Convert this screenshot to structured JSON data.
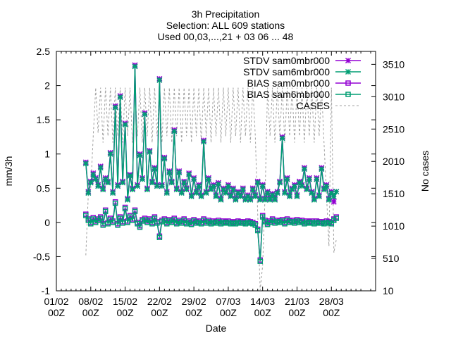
{
  "chart_data": {
    "type": "line",
    "title_lines": [
      "3h Precipitation",
      "Selection: ALL    609 stations",
      "Used 00,03,...,21 + 03 06 ... 48"
    ],
    "xlabel": "Date",
    "ylabel": "mm/3h",
    "y2label": "No cases",
    "xlim": [
      0,
      65
    ],
    "ylim": [
      -1,
      2.5
    ],
    "y2lim": [
      10,
      3710
    ],
    "xticks": [
      {
        "v": 0,
        "l1": "01/02",
        "l2": "00Z"
      },
      {
        "v": 7,
        "l1": "08/02",
        "l2": "00Z"
      },
      {
        "v": 14,
        "l1": "15/02",
        "l2": "00Z"
      },
      {
        "v": 21,
        "l1": "22/02",
        "l2": "00Z"
      },
      {
        "v": 28,
        "l1": "29/02",
        "l2": "00Z"
      },
      {
        "v": 35,
        "l1": "07/03",
        "l2": "00Z"
      },
      {
        "v": 42,
        "l1": "14/03",
        "l2": "00Z"
      },
      {
        "v": 49,
        "l1": "21/03",
        "l2": "00Z"
      },
      {
        "v": 56,
        "l1": "28/03",
        "l2": "00Z"
      }
    ],
    "yticks": [
      -1,
      -0.5,
      0,
      0.5,
      1,
      1.5,
      2,
      2.5
    ],
    "ytick_labels": [
      "-1",
      "-0.5",
      "0",
      "0.5",
      "1",
      "1.5",
      "2",
      "2.5"
    ],
    "y2ticks": [
      10,
      510,
      1010,
      1510,
      2010,
      2510,
      3010,
      3510
    ],
    "y2tick_labels": [
      "10",
      "510",
      "1010",
      "1510",
      "2010",
      "2510",
      "3010",
      "3510"
    ],
    "legend": [
      {
        "label": "STDV sam0mbr000",
        "color": "#9400d3",
        "marker": "star"
      },
      {
        "label": "STDV sam6mbr000",
        "color": "#009e73",
        "marker": "star"
      },
      {
        "label": "BIAS sam0mbr000",
        "color": "#9400d3",
        "marker": "square"
      },
      {
        "label": "BIAS sam6mbr000",
        "color": "#009e73",
        "marker": "square"
      },
      {
        "label": "CASES",
        "color": "#a0a0a0",
        "marker": "dash"
      }
    ],
    "series": [
      {
        "name": "STDV sam0mbr000",
        "color": "#9400d3",
        "x": [
          6,
          6.5,
          7,
          7.5,
          8,
          8.5,
          9,
          9.5,
          10,
          10.5,
          11,
          11.5,
          12,
          12.5,
          13,
          13.5,
          14,
          14.5,
          15,
          15.5,
          16,
          16.5,
          17,
          17.5,
          18,
          18.5,
          19,
          19.5,
          20,
          20.5,
          21,
          21.5,
          22,
          22.5,
          23,
          23.5,
          24,
          24.5,
          25,
          25.5,
          26,
          26.5,
          27,
          27.5,
          28,
          28.5,
          29,
          29.5,
          30,
          30.5,
          31,
          31.5,
          32,
          32.5,
          33,
          33.5,
          34,
          34.5,
          35,
          35.5,
          36,
          36.5,
          37,
          37.5,
          38,
          38.5,
          39,
          39.5,
          40,
          40.5,
          41,
          41.5,
          42,
          42.5,
          43,
          43.5,
          44,
          44.5,
          45,
          45.5,
          46,
          46.5,
          47,
          47.5,
          48,
          48.5,
          49,
          49.5,
          50,
          50.5,
          51,
          51.5,
          52,
          52.5,
          53,
          53.5,
          54,
          54.5,
          55,
          55.5,
          56,
          56.5,
          57
        ],
        "y": [
          0.88,
          0.45,
          0.6,
          0.72,
          0.65,
          0.55,
          0.82,
          0.5,
          0.65,
          0.6,
          1.02,
          0.45,
          1.7,
          0.55,
          1.85,
          0.6,
          1.45,
          0.35,
          0.7,
          0.5,
          2.3,
          0.55,
          1.0,
          0.65,
          1.6,
          0.5,
          1.05,
          0.6,
          0.8,
          0.55,
          2.1,
          0.55,
          0.95,
          0.45,
          0.75,
          0.6,
          1.35,
          0.5,
          0.75,
          0.45,
          0.6,
          0.5,
          0.72,
          0.4,
          0.65,
          0.45,
          0.55,
          0.4,
          1.2,
          0.45,
          0.65,
          0.5,
          0.55,
          0.4,
          0.58,
          0.35,
          0.5,
          0.45,
          0.55,
          0.4,
          0.5,
          0.35,
          0.45,
          0.4,
          0.5,
          0.35,
          0.4,
          0.35,
          0.5,
          0.4,
          0.6,
          0.35,
          0.55,
          0.35,
          0.45,
          0.35,
          0.42,
          0.35,
          0.45,
          0.6,
          1.25,
          0.45,
          0.65,
          0.4,
          0.5,
          0.55,
          0.4,
          0.6,
          0.55,
          0.8,
          0.5,
          0.65,
          0.45,
          0.35,
          0.65,
          0.4,
          0.8,
          0.5,
          0.55,
          0.35,
          0.45,
          0.3,
          0.45
        ]
      },
      {
        "name": "STDV sam6mbr000",
        "color": "#009e73",
        "x": [
          6,
          6.5,
          7,
          7.5,
          8,
          8.5,
          9,
          9.5,
          10,
          10.5,
          11,
          11.5,
          12,
          12.5,
          13,
          13.5,
          14,
          14.5,
          15,
          15.5,
          16,
          16.5,
          17,
          17.5,
          18,
          18.5,
          19,
          19.5,
          20,
          20.5,
          21,
          21.5,
          22,
          22.5,
          23,
          23.5,
          24,
          24.5,
          25,
          25.5,
          26,
          26.5,
          27,
          27.5,
          28,
          28.5,
          29,
          29.5,
          30,
          30.5,
          31,
          31.5,
          32,
          32.5,
          33,
          33.5,
          34,
          34.5,
          35,
          35.5,
          36,
          36.5,
          37,
          37.5,
          38,
          38.5,
          39,
          39.5,
          40,
          40.5,
          41,
          41.5,
          42,
          42.5,
          43,
          43.5,
          44,
          44.5,
          45,
          45.5,
          46,
          46.5,
          47,
          47.5,
          48,
          48.5,
          49,
          49.5,
          50,
          50.5,
          51,
          51.5,
          52,
          52.5,
          53,
          53.5,
          54,
          54.5,
          55,
          55.5,
          56,
          56.5,
          57
        ],
        "y": [
          0.86,
          0.43,
          0.58,
          0.7,
          0.63,
          0.53,
          0.8,
          0.48,
          0.63,
          0.58,
          1.0,
          0.43,
          1.68,
          0.53,
          1.83,
          0.58,
          1.43,
          0.33,
          0.68,
          0.48,
          2.28,
          0.53,
          0.98,
          0.63,
          1.58,
          0.48,
          1.03,
          0.58,
          0.78,
          0.53,
          2.08,
          0.53,
          0.93,
          0.43,
          0.73,
          0.58,
          1.33,
          0.48,
          0.73,
          0.43,
          0.58,
          0.48,
          0.7,
          0.38,
          0.63,
          0.43,
          0.53,
          0.38,
          1.18,
          0.43,
          0.63,
          0.48,
          0.53,
          0.38,
          0.56,
          0.33,
          0.48,
          0.43,
          0.53,
          0.38,
          0.48,
          0.33,
          0.43,
          0.38,
          0.48,
          0.33,
          0.38,
          0.33,
          0.48,
          0.38,
          0.58,
          0.33,
          0.53,
          0.33,
          0.43,
          0.33,
          0.4,
          0.33,
          0.43,
          0.58,
          1.23,
          0.43,
          0.63,
          0.38,
          0.48,
          0.53,
          0.38,
          0.58,
          0.53,
          0.78,
          0.48,
          0.63,
          0.43,
          0.33,
          0.63,
          0.38,
          0.78,
          0.48,
          0.53,
          0.33,
          0.43,
          0.38,
          0.45
        ]
      },
      {
        "name": "BIAS sam0mbr000",
        "color": "#9400d3",
        "x": [
          6,
          6.5,
          7,
          7.5,
          8,
          8.5,
          9,
          9.5,
          10,
          10.5,
          11,
          11.5,
          12,
          12.5,
          13,
          13.5,
          14,
          14.5,
          15,
          15.5,
          16,
          16.5,
          17,
          17.5,
          18,
          18.5,
          19,
          19.5,
          20,
          20.5,
          21,
          21.5,
          22,
          22.5,
          23,
          23.5,
          24,
          24.5,
          25,
          25.5,
          26,
          26.5,
          27,
          27.5,
          28,
          28.5,
          29,
          29.5,
          30,
          30.5,
          31,
          31.5,
          32,
          32.5,
          33,
          33.5,
          34,
          34.5,
          35,
          35.5,
          36,
          36.5,
          37,
          37.5,
          38,
          38.5,
          39,
          39.5,
          40,
          40.5,
          41,
          41.5,
          42,
          42.5,
          43,
          43.5,
          44,
          44.5,
          45,
          45.5,
          46,
          46.5,
          47,
          47.5,
          48,
          48.5,
          49,
          49.5,
          50,
          50.5,
          51,
          51.5,
          52,
          52.5,
          53,
          53.5,
          54,
          54.5,
          55,
          55.5,
          56,
          56.5,
          57
        ],
        "y": [
          0.12,
          0.05,
          0.0,
          0.07,
          0.02,
          0.05,
          0.08,
          -0.02,
          0.18,
          0.0,
          0.06,
          0.02,
          0.3,
          -0.02,
          0.08,
          0.01,
          0.22,
          0.02,
          0.1,
          0.05,
          0.18,
          0.0,
          -0.05,
          0.04,
          0.06,
          0.02,
          0.05,
          0.0,
          0.08,
          0.01,
          -0.2,
          0.03,
          0.05,
          0.0,
          0.04,
          0.02,
          0.06,
          0.0,
          0.03,
          0.01,
          0.05,
          0.0,
          0.02,
          -0.01,
          0.04,
          0.01,
          0.02,
          0.0,
          0.05,
          0.01,
          0.03,
          0.0,
          0.02,
          0.01,
          0.03,
          0.0,
          0.02,
          0.01,
          0.02,
          0.0,
          0.01,
          0.0,
          0.02,
          0.01,
          0.01,
          0.0,
          0.02,
          0.01,
          0.0,
          -0.02,
          -0.1,
          -0.55,
          0.1,
          0.03,
          -0.01,
          0.02,
          0.05,
          0.01,
          0.03,
          0.02,
          0.04,
          0.0,
          0.05,
          0.02,
          0.03,
          0.01,
          0.04,
          0.02,
          0.03,
          0.0,
          0.02,
          0.01,
          0.02,
          0.0,
          0.02,
          0.01,
          0.01,
          0.0,
          0.02,
          0.01,
          0.0,
          0.05,
          0.08
        ]
      },
      {
        "name": "BIAS sam6mbr000",
        "color": "#009e73",
        "x": [
          6,
          6.5,
          7,
          7.5,
          8,
          8.5,
          9,
          9.5,
          10,
          10.5,
          11,
          11.5,
          12,
          12.5,
          13,
          13.5,
          14,
          14.5,
          15,
          15.5,
          16,
          16.5,
          17,
          17.5,
          18,
          18.5,
          19,
          19.5,
          20,
          20.5,
          21,
          21.5,
          22,
          22.5,
          23,
          23.5,
          24,
          24.5,
          25,
          25.5,
          26,
          26.5,
          27,
          27.5,
          28,
          28.5,
          29,
          29.5,
          30,
          30.5,
          31,
          31.5,
          32,
          32.5,
          33,
          33.5,
          34,
          34.5,
          35,
          35.5,
          36,
          36.5,
          37,
          37.5,
          38,
          38.5,
          39,
          39.5,
          40,
          40.5,
          41,
          41.5,
          42,
          42.5,
          43,
          43.5,
          44,
          44.5,
          45,
          45.5,
          46,
          46.5,
          47,
          47.5,
          48,
          48.5,
          49,
          49.5,
          50,
          50.5,
          51,
          51.5,
          52,
          52.5,
          53,
          53.5,
          54,
          54.5,
          55,
          55.5,
          56,
          56.5,
          57
        ],
        "y": [
          0.1,
          0.03,
          -0.02,
          0.05,
          0.0,
          0.03,
          0.06,
          -0.04,
          0.16,
          -0.02,
          0.04,
          0.0,
          0.28,
          -0.04,
          0.06,
          -0.01,
          0.2,
          0.0,
          0.08,
          0.03,
          0.16,
          -0.02,
          -0.07,
          0.02,
          0.04,
          0.0,
          0.03,
          -0.02,
          0.06,
          -0.01,
          -0.22,
          0.01,
          0.03,
          -0.02,
          0.02,
          0.0,
          0.04,
          -0.02,
          0.01,
          -0.01,
          0.03,
          -0.02,
          0.0,
          -0.03,
          0.02,
          -0.01,
          0.0,
          -0.02,
          0.03,
          -0.01,
          0.01,
          -0.02,
          0.0,
          -0.01,
          0.01,
          -0.02,
          0.0,
          -0.01,
          0.0,
          -0.02,
          -0.01,
          -0.02,
          0.0,
          -0.01,
          -0.01,
          -0.02,
          0.0,
          -0.01,
          -0.02,
          -0.04,
          -0.12,
          -0.57,
          0.08,
          0.01,
          -0.03,
          0.0,
          0.03,
          -0.01,
          0.01,
          0.0,
          0.02,
          -0.02,
          0.03,
          0.0,
          0.01,
          -0.01,
          0.02,
          0.0,
          0.01,
          -0.02,
          0.0,
          -0.01,
          0.0,
          -0.02,
          0.0,
          -0.01,
          -0.01,
          -0.02,
          0.0,
          -0.01,
          -0.02,
          0.03,
          0.06
        ]
      },
      {
        "name": "CASES",
        "color": "#a0a0a0",
        "x": [
          6,
          6.5,
          7,
          7.5,
          8,
          8.5,
          9,
          9.5,
          10,
          10.5,
          11,
          11.5,
          12,
          12.5,
          13,
          13.5,
          14,
          14.5,
          15,
          15.5,
          16,
          16.5,
          17,
          17.5,
          18,
          18.5,
          19,
          19.5,
          20,
          20.5,
          21,
          21.5,
          22,
          22.5,
          23,
          23.5,
          24,
          24.5,
          25,
          25.5,
          26,
          26.5,
          27,
          27.5,
          28,
          28.5,
          29,
          29.5,
          30,
          30.5,
          31,
          31.5,
          32,
          32.5,
          33,
          33.5,
          34,
          34.5,
          35,
          35.5,
          36,
          36.5,
          37,
          37.5,
          38,
          38.5,
          39,
          39.5,
          40,
          40.5,
          41,
          41.5,
          42,
          42.5,
          43,
          43.5,
          44,
          44.5,
          45,
          45.5,
          46,
          46.5,
          47,
          47.5,
          48,
          48.5,
          49,
          49.5,
          50,
          50.5,
          51,
          51.5,
          52,
          52.5,
          53,
          53.5,
          54,
          54.5,
          55,
          55.5,
          56,
          56.5,
          57
        ],
        "y": [
          560,
          1500,
          1600,
          2400,
          3150,
          2450,
          3150,
          2300,
          3150,
          2400,
          3150,
          2300,
          3150,
          2400,
          3150,
          2300,
          3150,
          2400,
          3150,
          2300,
          3150,
          2400,
          3150,
          2300,
          3150,
          2400,
          3150,
          2300,
          3150,
          2400,
          3150,
          2300,
          3150,
          2400,
          3150,
          2300,
          3150,
          2400,
          3150,
          2300,
          3150,
          2400,
          3150,
          2300,
          3150,
          2400,
          3150,
          2300,
          3150,
          2400,
          3150,
          2300,
          3150,
          2400,
          3150,
          2300,
          3150,
          2400,
          3150,
          2300,
          3150,
          2400,
          3150,
          2300,
          3150,
          2400,
          3150,
          2300,
          3150,
          2400,
          1200,
          20,
          400,
          1500,
          3150,
          2400,
          3150,
          2300,
          3150,
          2400,
          3150,
          2300,
          3150,
          2400,
          3150,
          2300,
          3150,
          2400,
          3150,
          2300,
          3150,
          2400,
          3150,
          2300,
          3150,
          2400,
          3150,
          2300,
          1500,
          700,
          3150,
          600,
          800
        ]
      }
    ]
  }
}
